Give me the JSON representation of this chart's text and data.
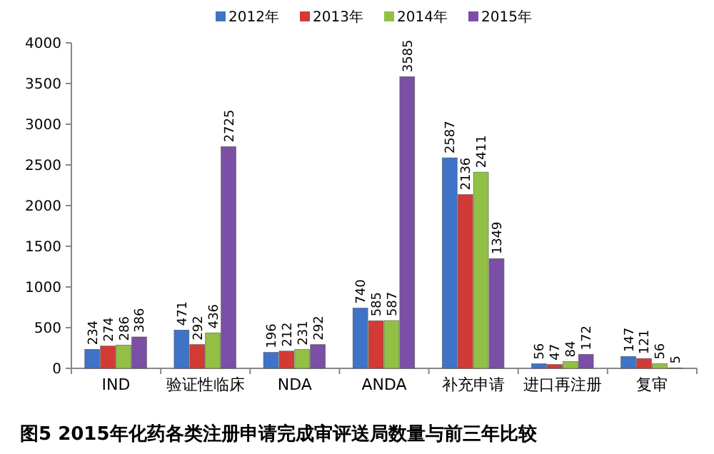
{
  "chart_data": {
    "type": "bar",
    "title": "图5  2015年化药各类注册申请完成审评送局数量与前三年比较",
    "categories": [
      "IND",
      "验证性临床",
      "NDA",
      "ANDA",
      "补充申请",
      "进口再注册",
      "复审"
    ],
    "series": [
      {
        "name": "2012年",
        "color": "#3f73c8",
        "values": [
          234,
          471,
          196,
          740,
          2587,
          56,
          147
        ]
      },
      {
        "name": "2013年",
        "color": "#d23a36",
        "values": [
          274,
          292,
          212,
          585,
          2136,
          47,
          121
        ]
      },
      {
        "name": "2014年",
        "color": "#92c045",
        "values": [
          286,
          436,
          231,
          587,
          2411,
          84,
          56
        ]
      },
      {
        "name": "2015年",
        "color": "#7b4fa5",
        "values": [
          386,
          2725,
          292,
          3585,
          1349,
          172,
          5
        ]
      }
    ],
    "ylim": [
      0,
      4000
    ],
    "yticks": [
      0,
      500,
      1000,
      1500,
      2000,
      2500,
      3000,
      3500,
      4000
    ],
    "data_labels": true,
    "legend": "top",
    "grid": false
  }
}
